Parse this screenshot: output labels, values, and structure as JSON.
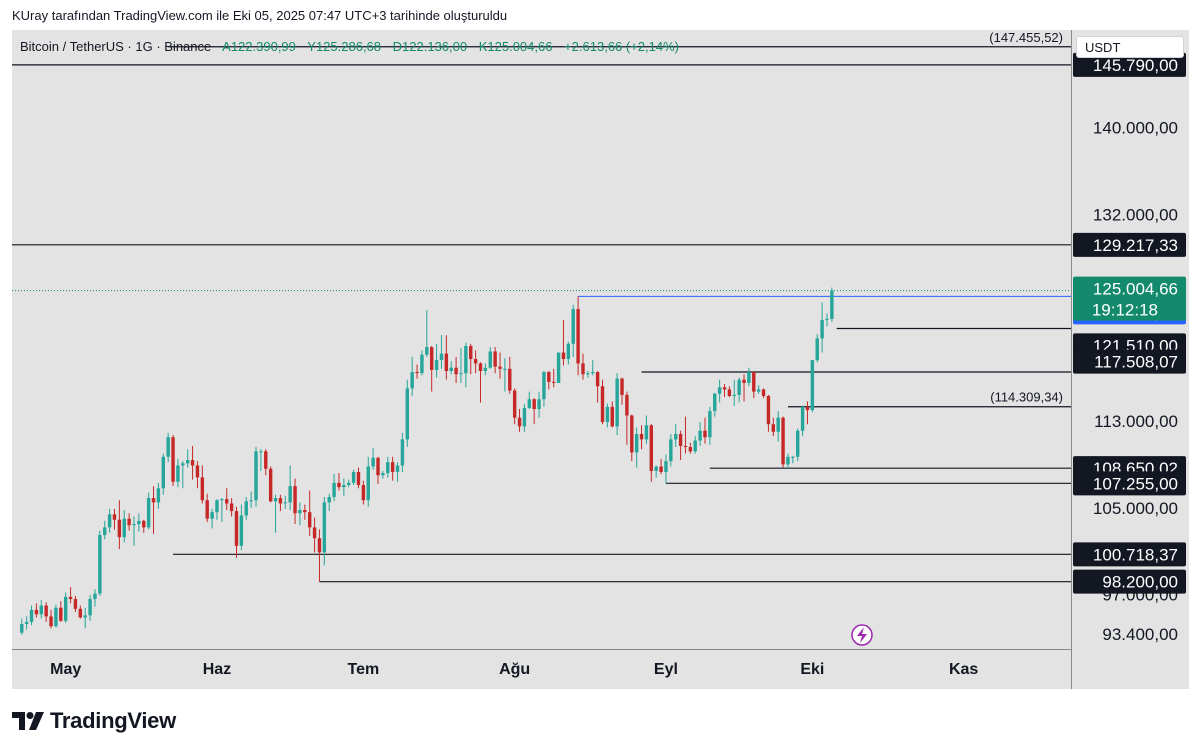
{
  "header_note": "KUray tarafından TradingView.com ile Eki 05, 2025 07:47 UTC+3 tarihinde oluşturuldu",
  "legend": {
    "symbol": "Bitcoin / TetherUS · 1G · Binance",
    "open": "A122.390,99",
    "high": "Y125.286,68",
    "low": "D122.136,00",
    "close": "K125.004,66",
    "change": "+2.613,66 (+2,14%)"
  },
  "currency_label": "USDT",
  "brand": "TradingView",
  "colors": {
    "background": "#e3e3e3",
    "up": "#26a69a",
    "down": "#c62828",
    "line": "#131722",
    "price_badge": "#138a6c",
    "blue_badge": "#2962ff"
  },
  "chart_data": {
    "type": "candlestick",
    "ylim": [
      92000,
      149000
    ],
    "x_ticks": [
      "May",
      "Haz",
      "Tem",
      "Ağu",
      "Eyl",
      "Eki",
      "Kas"
    ],
    "y_ticks": [
      "140.000,00",
      "132.000,00",
      "113.000,00",
      "105.000,00",
      "97.000,00",
      "93.400,00"
    ],
    "y_tick_values": [
      140000,
      132000,
      113000,
      105000,
      97000,
      93400
    ],
    "x_tick_dates": [
      "2025-05-01",
      "2025-06-01",
      "2025-07-01",
      "2025-08-01",
      "2025-09-01",
      "2025-10-01",
      "2025-11-01"
    ],
    "x_range": [
      "2025-04-20",
      "2025-11-23"
    ],
    "last_price": {
      "value": 125004.66,
      "label": "125.004,66",
      "countdown": "19:12:18"
    },
    "blue_level": {
      "value": 124474,
      "label": "124.474,00"
    },
    "levels": [
      {
        "value": 145790,
        "label": "145.790,00",
        "from": "2025-04-20"
      },
      {
        "value": 129217.33,
        "label": "129.217,33",
        "from": "2025-04-20"
      },
      {
        "value": 121510,
        "label": "121.510,00",
        "from": "2025-10-06"
      },
      {
        "value": 117508.07,
        "label": "117.508,07",
        "from": "2025-08-27"
      },
      {
        "value": 108650.02,
        "label": "108.650,02",
        "from": "2025-09-10"
      },
      {
        "value": 107255,
        "label": "107.255,00",
        "from": "2025-09-01"
      },
      {
        "value": 100718.37,
        "label": "100.718,37",
        "from": "2025-05-23"
      },
      {
        "value": 98200,
        "label": "98.200,00",
        "from": "2025-06-22"
      }
    ],
    "annotations": [
      {
        "value": 147455.52,
        "label": "(147.455,52)",
        "from": "2025-05-22"
      },
      {
        "value": 114309.34,
        "label": "(114.309,34)",
        "from": "2025-09-26"
      }
    ],
    "candles": [
      [
        "2025-04-22",
        93500,
        94800,
        93300,
        94300
      ],
      [
        "2025-04-23",
        94300,
        95000,
        93800,
        94500
      ],
      [
        "2025-04-24",
        94500,
        96000,
        94200,
        95600
      ],
      [
        "2025-04-25",
        95600,
        96200,
        94900,
        95200
      ],
      [
        "2025-04-26",
        95200,
        96500,
        94800,
        96000
      ],
      [
        "2025-04-27",
        96000,
        96300,
        94500,
        95000
      ],
      [
        "2025-04-28",
        95000,
        95600,
        93900,
        94100
      ],
      [
        "2025-04-29",
        94100,
        96100,
        94000,
        95800
      ],
      [
        "2025-04-30",
        95800,
        96400,
        94500,
        94600
      ],
      [
        "2025-05-01",
        94600,
        97200,
        94400,
        96800
      ],
      [
        "2025-05-02",
        96800,
        97700,
        96200,
        96600
      ],
      [
        "2025-05-03",
        96600,
        96900,
        95400,
        95700
      ],
      [
        "2025-05-04",
        95700,
        96000,
        94800,
        94900
      ],
      [
        "2025-05-05",
        94900,
        95800,
        93900,
        95100
      ],
      [
        "2025-05-06",
        95100,
        97000,
        94600,
        96600
      ],
      [
        "2025-05-07",
        96600,
        97500,
        95900,
        97100
      ],
      [
        "2025-05-08",
        97100,
        102900,
        96900,
        102500
      ],
      [
        "2025-05-09",
        102500,
        103800,
        102100,
        103200
      ],
      [
        "2025-05-10",
        103200,
        104900,
        102700,
        104400
      ],
      [
        "2025-05-11",
        104400,
        104900,
        103000,
        103900
      ],
      [
        "2025-05-12",
        103900,
        105700,
        101200,
        102300
      ],
      [
        "2025-05-13",
        102300,
        104800,
        101800,
        104000
      ],
      [
        "2025-05-14",
        104000,
        104500,
        102900,
        103400
      ],
      [
        "2025-05-15",
        103400,
        104200,
        101500,
        103500
      ],
      [
        "2025-05-16",
        103500,
        104500,
        102800,
        103800
      ],
      [
        "2025-05-17",
        103800,
        103900,
        102700,
        103200
      ],
      [
        "2025-05-18",
        103200,
        106400,
        103000,
        105900
      ],
      [
        "2025-05-19",
        105900,
        107000,
        102600,
        105500
      ],
      [
        "2025-05-20",
        105500,
        107300,
        104900,
        106800
      ],
      [
        "2025-05-21",
        106800,
        110000,
        106200,
        109700
      ],
      [
        "2025-05-22",
        109700,
        111900,
        109200,
        111500
      ],
      [
        "2025-05-23",
        111500,
        111700,
        107000,
        107400
      ],
      [
        "2025-05-24",
        107400,
        109500,
        106900,
        108900
      ],
      [
        "2025-05-25",
        108900,
        109300,
        106800,
        109100
      ],
      [
        "2025-05-26",
        109100,
        110400,
        108700,
        109400
      ],
      [
        "2025-05-27",
        109400,
        110700,
        107600,
        108900
      ],
      [
        "2025-05-28",
        108900,
        109300,
        106800,
        107800
      ],
      [
        "2025-05-29",
        107800,
        108900,
        105400,
        105700
      ],
      [
        "2025-05-30",
        105700,
        106300,
        103700,
        104000
      ],
      [
        "2025-05-31",
        104000,
        104900,
        103100,
        104600
      ],
      [
        "2025-06-01",
        104600,
        105800,
        103900,
        105700
      ],
      [
        "2025-06-02",
        105700,
        105900,
        103700,
        105800
      ],
      [
        "2025-06-03",
        105800,
        106800,
        104800,
        105400
      ],
      [
        "2025-06-04",
        105400,
        105900,
        104200,
        104700
      ],
      [
        "2025-06-05",
        104700,
        105100,
        100400,
        101500
      ],
      [
        "2025-06-06",
        101500,
        105300,
        101100,
        104300
      ],
      [
        "2025-06-07",
        104300,
        106000,
        103900,
        105600
      ],
      [
        "2025-06-08",
        105600,
        106500,
        105000,
        105700
      ],
      [
        "2025-06-09",
        105700,
        110600,
        105100,
        110200
      ],
      [
        "2025-06-10",
        110200,
        110400,
        108400,
        110200
      ],
      [
        "2025-06-11",
        110200,
        110400,
        108000,
        108600
      ],
      [
        "2025-06-12",
        108600,
        108800,
        105500,
        105600
      ],
      [
        "2025-06-13",
        105600,
        106200,
        102700,
        105900
      ],
      [
        "2025-06-14",
        105900,
        106200,
        104700,
        105400
      ],
      [
        "2025-06-15",
        105400,
        106100,
        104900,
        105500
      ],
      [
        "2025-06-16",
        105500,
        108900,
        104800,
        107000
      ],
      [
        "2025-06-17",
        107000,
        107700,
        103500,
        104500
      ],
      [
        "2025-06-18",
        104500,
        105500,
        103400,
        104800
      ],
      [
        "2025-06-19",
        104800,
        105300,
        103900,
        104600
      ],
      [
        "2025-06-20",
        104600,
        106600,
        102400,
        103200
      ],
      [
        "2025-06-21",
        103200,
        104100,
        100900,
        102200
      ],
      [
        "2025-06-22",
        102200,
        103000,
        98200,
        100900
      ],
      [
        "2025-06-23",
        100900,
        106000,
        99700,
        105500
      ],
      [
        "2025-06-24",
        105500,
        106300,
        104700,
        106000
      ],
      [
        "2025-06-25",
        106000,
        108100,
        105600,
        107300
      ],
      [
        "2025-06-26",
        107300,
        108200,
        106600,
        106900
      ],
      [
        "2025-06-27",
        106900,
        107700,
        106100,
        107100
      ],
      [
        "2025-06-28",
        107100,
        107600,
        106900,
        107300
      ],
      [
        "2025-06-29",
        107300,
        108500,
        107100,
        108300
      ],
      [
        "2025-06-30",
        108300,
        108700,
        106800,
        107100
      ],
      [
        "2025-07-01",
        107100,
        107500,
        105300,
        105700
      ],
      [
        "2025-07-02",
        105700,
        109700,
        105100,
        108800
      ],
      [
        "2025-07-03",
        108800,
        110500,
        108500,
        109600
      ],
      [
        "2025-07-04",
        109600,
        109700,
        107200,
        108000
      ],
      [
        "2025-07-05",
        108000,
        108400,
        107700,
        108200
      ],
      [
        "2025-07-06",
        108200,
        109700,
        107800,
        109200
      ],
      [
        "2025-07-07",
        109200,
        109700,
        107500,
        108300
      ],
      [
        "2025-07-08",
        108300,
        109200,
        107400,
        108900
      ],
      [
        "2025-07-09",
        108900,
        111900,
        108300,
        111300
      ],
      [
        "2025-07-10",
        111300,
        116800,
        110600,
        116000
      ],
      [
        "2025-07-11",
        116000,
        118900,
        115300,
        117500
      ],
      [
        "2025-07-12",
        117500,
        118200,
        116900,
        117400
      ],
      [
        "2025-07-13",
        117400,
        119500,
        117200,
        119100
      ],
      [
        "2025-07-14",
        119100,
        123200,
        118900,
        119800
      ],
      [
        "2025-07-15",
        119800,
        119900,
        115700,
        117700
      ],
      [
        "2025-07-16",
        117700,
        120100,
        117000,
        118600
      ],
      [
        "2025-07-17",
        118600,
        120900,
        117800,
        119200
      ],
      [
        "2025-07-18",
        119200,
        120900,
        116800,
        117600
      ],
      [
        "2025-07-19",
        117600,
        118500,
        117300,
        117900
      ],
      [
        "2025-07-20",
        117900,
        118900,
        116500,
        117300
      ],
      [
        "2025-07-21",
        117300,
        119700,
        116500,
        117400
      ],
      [
        "2025-07-22",
        117400,
        120200,
        116100,
        119900
      ],
      [
        "2025-07-23",
        119900,
        120100,
        117300,
        118700
      ],
      [
        "2025-07-24",
        118700,
        119500,
        117400,
        118300
      ],
      [
        "2025-07-25",
        118300,
        118400,
        114700,
        117600
      ],
      [
        "2025-07-26",
        117600,
        118300,
        117200,
        117900
      ],
      [
        "2025-07-27",
        117900,
        119800,
        117800,
        119400
      ],
      [
        "2025-07-28",
        119400,
        119800,
        117400,
        118000
      ],
      [
        "2025-07-29",
        118000,
        119300,
        116900,
        117800
      ],
      [
        "2025-07-30",
        117800,
        118800,
        115700,
        117800
      ],
      [
        "2025-07-31",
        117800,
        118900,
        115500,
        115800
      ],
      [
        "2025-08-01",
        115800,
        116000,
        112700,
        113300
      ],
      [
        "2025-08-02",
        113300,
        114100,
        112000,
        112500
      ],
      [
        "2025-08-03",
        112500,
        114600,
        112000,
        114200
      ],
      [
        "2025-08-04",
        114200,
        115700,
        114100,
        115000
      ],
      [
        "2025-08-05",
        115000,
        115100,
        112700,
        114100
      ],
      [
        "2025-08-06",
        114100,
        115700,
        113300,
        115000
      ],
      [
        "2025-08-07",
        115000,
        117600,
        114300,
        117500
      ],
      [
        "2025-08-08",
        117500,
        117600,
        115900,
        116600
      ],
      [
        "2025-08-09",
        116600,
        117800,
        116100,
        116500
      ],
      [
        "2025-08-10",
        116500,
        119300,
        116500,
        119300
      ],
      [
        "2025-08-11",
        119300,
        122300,
        118100,
        118700
      ],
      [
        "2025-08-12",
        118700,
        120300,
        118200,
        120100
      ],
      [
        "2025-08-13",
        120100,
        123700,
        118900,
        123300
      ],
      [
        "2025-08-14",
        123300,
        124474,
        117200,
        118300
      ],
      [
        "2025-08-15",
        118300,
        119200,
        116800,
        117300
      ],
      [
        "2025-08-16",
        117300,
        117600,
        117000,
        117400
      ],
      [
        "2025-08-17",
        117400,
        118600,
        117200,
        117500
      ],
      [
        "2025-08-18",
        117500,
        117600,
        114700,
        116200
      ],
      [
        "2025-08-19",
        116200,
        116800,
        112700,
        112900
      ],
      [
        "2025-08-20",
        112900,
        114600,
        112400,
        114300
      ],
      [
        "2025-08-21",
        114300,
        114800,
        112400,
        112500
      ],
      [
        "2025-08-22",
        112500,
        117400,
        111700,
        116900
      ],
      [
        "2025-08-23",
        116900,
        117000,
        114500,
        115400
      ],
      [
        "2025-08-24",
        115400,
        115700,
        110800,
        113500
      ],
      [
        "2025-08-25",
        113500,
        113600,
        109300,
        110100
      ],
      [
        "2025-08-26",
        110100,
        112400,
        108700,
        111800
      ],
      [
        "2025-08-27",
        111800,
        112600,
        110400,
        111300
      ],
      [
        "2025-08-28",
        111300,
        113500,
        110900,
        112600
      ],
      [
        "2025-08-29",
        112600,
        112700,
        107400,
        108400
      ],
      [
        "2025-08-30",
        108400,
        108900,
        107800,
        108800
      ],
      [
        "2025-08-31",
        108800,
        109500,
        108100,
        108300
      ],
      [
        "2025-09-01",
        108300,
        109900,
        107255,
        109300
      ],
      [
        "2025-09-02",
        109300,
        111800,
        108800,
        111300
      ],
      [
        "2025-09-03",
        111300,
        112700,
        110600,
        111800
      ],
      [
        "2025-09-04",
        111800,
        112100,
        109400,
        110700
      ],
      [
        "2025-09-05",
        110700,
        113400,
        110000,
        110600
      ],
      [
        "2025-09-06",
        110600,
        111000,
        110000,
        110200
      ],
      [
        "2025-09-07",
        110200,
        111600,
        110000,
        111200
      ],
      [
        "2025-09-08",
        111200,
        112900,
        110700,
        112100
      ],
      [
        "2025-09-09",
        112100,
        113300,
        110900,
        111500
      ],
      [
        "2025-09-10",
        111500,
        114300,
        110800,
        113900
      ],
      [
        "2025-09-11",
        113900,
        115600,
        113400,
        115500
      ],
      [
        "2025-09-12",
        115500,
        116800,
        114700,
        116100
      ],
      [
        "2025-09-13",
        116100,
        116400,
        115200,
        115900
      ],
      [
        "2025-09-14",
        115900,
        116200,
        115200,
        115300
      ],
      [
        "2025-09-15",
        115300,
        116800,
        114400,
        115400
      ],
      [
        "2025-09-16",
        115400,
        117000,
        114700,
        116800
      ],
      [
        "2025-09-17",
        116800,
        117300,
        114800,
        116500
      ],
      [
        "2025-09-18",
        116500,
        117900,
        116200,
        117500
      ],
      [
        "2025-09-19",
        117500,
        117500,
        115100,
        115700
      ],
      [
        "2025-09-20",
        115700,
        116300,
        115500,
        115900
      ],
      [
        "2025-09-21",
        115900,
        116000,
        115100,
        115300
      ],
      [
        "2025-09-22",
        115300,
        115400,
        112000,
        112700
      ],
      [
        "2025-09-23",
        112700,
        113300,
        111600,
        112000
      ],
      [
        "2025-09-24",
        112000,
        113900,
        111100,
        113300
      ],
      [
        "2025-09-25",
        113300,
        113400,
        108700,
        109000
      ],
      [
        "2025-09-26",
        109000,
        110000,
        108650,
        109700
      ],
      [
        "2025-09-27",
        109700,
        109800,
        109100,
        109700
      ],
      [
        "2025-09-28",
        109700,
        112300,
        109300,
        112100
      ],
      [
        "2025-09-29",
        112100,
        114400,
        111600,
        114300
      ],
      [
        "2025-09-30",
        114300,
        114800,
        112700,
        114000
      ],
      [
        "2025-10-01",
        114000,
        118600,
        113800,
        118600
      ],
      [
        "2025-10-02",
        118600,
        121000,
        118400,
        120600
      ],
      [
        "2025-10-03",
        120600,
        123900,
        119300,
        122300
      ],
      [
        "2025-10-04",
        122300,
        122900,
        121700,
        122400
      ],
      [
        "2025-10-05",
        122390.99,
        125286.68,
        122136,
        125004.66
      ]
    ]
  }
}
